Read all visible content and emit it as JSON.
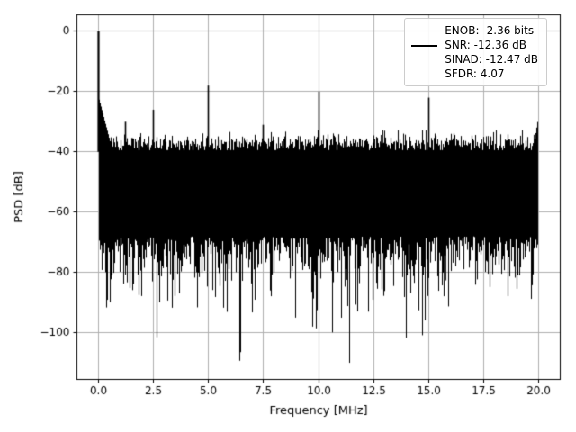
{
  "chart_data": {
    "type": "line",
    "title": "",
    "xlabel": "Frequency [MHz]",
    "ylabel": "PSD [dB]",
    "xlim": [
      -1,
      21
    ],
    "ylim": [
      -115.5,
      5.5
    ],
    "xticks": [
      0,
      2.5,
      5,
      7.5,
      10,
      12.5,
      15,
      17.5,
      20
    ],
    "xtick_labels": [
      "0.0",
      "2.5",
      "5.0",
      "7.5",
      "10.0",
      "12.5",
      "15.0",
      "17.5",
      "20.0"
    ],
    "yticks": [
      0,
      -20,
      -40,
      -60,
      -80,
      -100
    ],
    "ytick_labels": [
      "0",
      "−20",
      "−40",
      "−60",
      "−80",
      "−100"
    ],
    "grid": true,
    "line_color": "#000000",
    "legend": {
      "position": "upper right",
      "entries": [
        "ENOB: -2.36 bits",
        "SNR: -12.36 dB",
        "SINAD: -12.47 dB",
        "SFDR: 4.07"
      ]
    },
    "signal": {
      "fundamental": {
        "freq_mhz": 0.0,
        "level_db": 0
      },
      "spurs": [
        {
          "freq_mhz": 1.2,
          "level_db": -30
        },
        {
          "freq_mhz": 2.5,
          "level_db": -26
        },
        {
          "freq_mhz": 5.0,
          "level_db": -18
        },
        {
          "freq_mhz": 7.5,
          "level_db": -31
        },
        {
          "freq_mhz": 10.0,
          "level_db": -20
        },
        {
          "freq_mhz": 15.0,
          "level_db": -22
        }
      ],
      "noise_floor": {
        "top_db": -37,
        "core_bottom_db": -70,
        "spike_depth_mean_db": 7,
        "min_db": -110,
        "deep_nulls": [
          {
            "freq_mhz": 11.4,
            "level_db": -110
          }
        ]
      }
    },
    "seed": 1337
  },
  "figure": {
    "background": "#ffffff",
    "grid_color": "#b0b0b0",
    "axis_color": "#000000",
    "tick_color": "#000000"
  }
}
